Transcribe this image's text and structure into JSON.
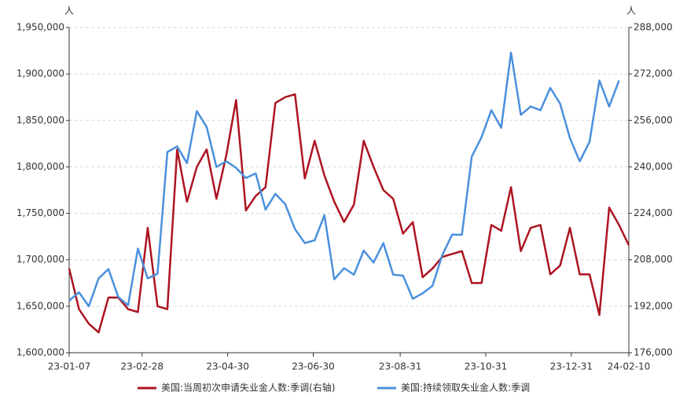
{
  "chart_data": {
    "type": "line",
    "x": [
      "23-01-07",
      "23-01-14",
      "23-01-21",
      "23-01-28",
      "23-02-04",
      "23-02-11",
      "23-02-18",
      "23-02-25",
      "23-03-04",
      "23-03-11",
      "23-03-18",
      "23-03-25",
      "23-04-01",
      "23-04-08",
      "23-04-15",
      "23-04-22",
      "23-04-29",
      "23-05-06",
      "23-05-13",
      "23-05-20",
      "23-05-27",
      "23-06-03",
      "23-06-10",
      "23-06-17",
      "23-06-24",
      "23-07-01",
      "23-07-08",
      "23-07-15",
      "23-07-22",
      "23-07-29",
      "23-08-05",
      "23-08-12",
      "23-08-19",
      "23-08-26",
      "23-09-02",
      "23-09-09",
      "23-09-16",
      "23-09-23",
      "23-09-30",
      "23-10-07",
      "23-10-14",
      "23-10-21",
      "23-10-28",
      "23-11-04",
      "23-11-11",
      "23-11-18",
      "23-11-25",
      "23-12-02",
      "23-12-09",
      "23-12-16",
      "23-12-23",
      "23-12-30",
      "24-01-06",
      "24-01-13",
      "24-01-20",
      "24-01-27",
      "24-02-03",
      "24-02-10"
    ],
    "series": [
      {
        "name": "美国:当周初次申请失业金人数:季调(右轴)",
        "color": "#ad1421",
        "axis": "y2",
        "values": [
          205000,
          191000,
          186000,
          183000,
          195000,
          195000,
          191000,
          190000,
          219000,
          192000,
          191000,
          246000,
          228000,
          240000,
          246000,
          229000,
          244000,
          263000,
          225000,
          230000,
          233000,
          262000,
          264000,
          265000,
          236000,
          249000,
          237000,
          228000,
          221000,
          227000,
          249000,
          240000,
          232000,
          229000,
          217000,
          221000,
          202000,
          205000,
          209000,
          210000,
          211000,
          200000,
          200000,
          220000,
          218000,
          233000,
          211000,
          219000,
          220000,
          203000,
          206000,
          219000,
          203000,
          203000,
          189000,
          226000,
          220000,
          213000
        ]
      },
      {
        "name": "美国:持续领取失业金人数:季调",
        "color": "#4a90dc",
        "values": [
          1656000,
          1665000,
          1650000,
          1680000,
          1690000,
          1660000,
          1651000,
          1712000,
          1680000,
          1685000,
          1816000,
          1822000,
          1804000,
          1860000,
          1843000,
          1800000,
          1806000,
          1799000,
          1788000,
          1793000,
          1754000,
          1771000,
          1760000,
          1733000,
          1718000,
          1721000,
          1748000,
          1679000,
          1691000,
          1684000,
          1710000,
          1697000,
          1718000,
          1684000,
          1683000,
          1658000,
          1664000,
          1672000,
          1705000,
          1727000,
          1727000,
          1811000,
          1832000,
          1861000,
          1842000,
          1923000,
          1856000,
          1865000,
          1861000,
          1885000,
          1868000,
          1831000,
          1806000,
          1827000,
          1893000,
          1865000,
          1893000,
          null
        ]
      }
    ],
    "xlim": [
      "23-01-07",
      "24-02-10"
    ],
    "xticks": [
      "23-01-07",
      "23-02-28",
      "23-04-30",
      "23-06-30",
      "23-08-31",
      "23-10-31",
      "23-12-31",
      "24-02-10"
    ],
    "y_label": "人",
    "y2_label": "人",
    "ylim": [
      1600000,
      1950000
    ],
    "yticks": [
      {
        "value": 1600000,
        "label": "1,600,000"
      },
      {
        "value": 1650000,
        "label": "1,650,000"
      },
      {
        "value": 1700000,
        "label": "1,700,000"
      },
      {
        "value": 1750000,
        "label": "1,750,000"
      },
      {
        "value": 1800000,
        "label": "1,800,000"
      },
      {
        "value": 1850000,
        "label": "1,850,000"
      },
      {
        "value": 1900000,
        "label": "1,900,000"
      },
      {
        "value": 1950000,
        "label": "1,950,000"
      }
    ],
    "y2lim": [
      176000,
      288000
    ],
    "y2ticks": [
      {
        "value": 176000,
        "label": "176,000"
      },
      {
        "value": 192000,
        "label": "192,000"
      },
      {
        "value": 208000,
        "label": "208,000"
      },
      {
        "value": 224000,
        "label": "224,000"
      },
      {
        "value": 240000,
        "label": "240,000"
      },
      {
        "value": 256000,
        "label": "256,000"
      },
      {
        "value": 272000,
        "label": "272,000"
      },
      {
        "value": 288000,
        "label": "288,000"
      }
    ],
    "grid": true
  }
}
